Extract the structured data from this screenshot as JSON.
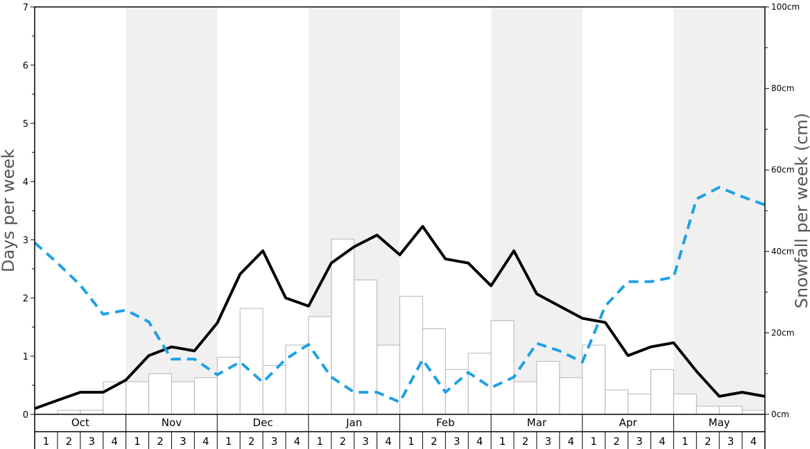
{
  "chart_data": {
    "type": "bar",
    "ylabel_left": "Days per week",
    "ylabel_right": "Snowfall per week (cm)",
    "ylim_left": [
      0,
      7
    ],
    "ylim_right": [
      0,
      100
    ],
    "left_ticks": [
      "0",
      "1",
      "2",
      "3",
      "4",
      "5",
      "6",
      "7"
    ],
    "right_ticks": [
      "0cm",
      "20cm",
      "40cm",
      "60cm",
      "80cm",
      "100cm"
    ],
    "months": [
      "Oct",
      "Nov",
      "Dec",
      "Jan",
      "Feb",
      "Mar",
      "Apr",
      "May"
    ],
    "weeks": [
      "1",
      "2",
      "3",
      "4"
    ],
    "colors": {
      "shade": "#f0f0f0",
      "bar_fill": "#ffffff",
      "bar_stroke": "#b3b3b3",
      "solid_line": "#000000",
      "dashed_line": "#1ea0e6"
    },
    "series": [
      {
        "type": "bar",
        "axis": "right",
        "values": [
          0,
          1,
          1,
          8,
          8,
          10,
          8,
          9,
          14,
          26,
          12,
          17,
          24,
          43,
          33,
          17,
          29,
          21,
          11,
          15,
          23,
          8,
          13,
          9,
          17,
          6,
          5,
          11,
          5,
          2,
          2,
          1
        ]
      },
      {
        "type": "line",
        "style": "solid",
        "axis": "left",
        "values": [
          0.1,
          0.24,
          0.38,
          0.38,
          0.59,
          1.01,
          1.16,
          1.09,
          1.57,
          2.41,
          2.81,
          2.0,
          1.86,
          2.6,
          2.88,
          3.08,
          2.74,
          3.23,
          2.67,
          2.6,
          2.21,
          2.81,
          2.07,
          1.86,
          1.65,
          1.58,
          1.01,
          1.16,
          1.23,
          0.74,
          0.31,
          0.38,
          0.31
        ]
      },
      {
        "type": "line",
        "style": "dashed",
        "axis": "left",
        "values": [
          2.95,
          2.6,
          2.22,
          1.72,
          1.79,
          1.59,
          0.95,
          0.95,
          0.68,
          0.9,
          0.55,
          0.95,
          1.2,
          0.64,
          0.38,
          0.38,
          0.21,
          0.94,
          0.38,
          0.72,
          0.46,
          0.64,
          1.22,
          1.09,
          0.9,
          1.86,
          2.28,
          2.28,
          2.36,
          3.7,
          3.9,
          3.74,
          3.6
        ]
      }
    ]
  }
}
